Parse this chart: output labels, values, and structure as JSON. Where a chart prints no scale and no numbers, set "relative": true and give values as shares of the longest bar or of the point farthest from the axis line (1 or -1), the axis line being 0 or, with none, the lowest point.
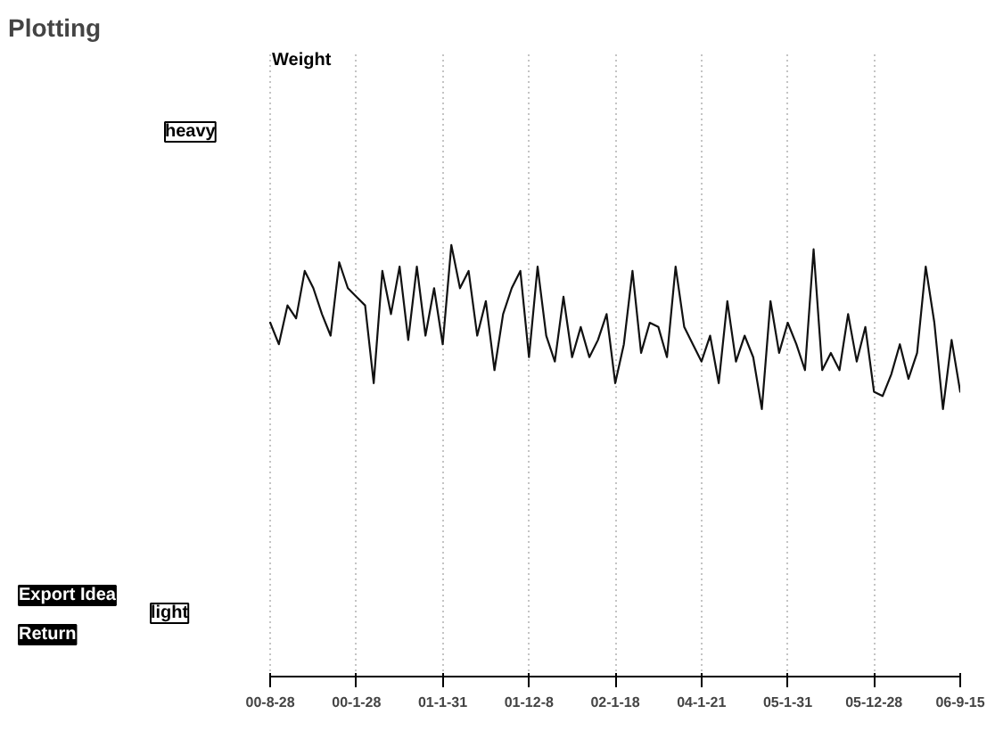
{
  "chart_data": {
    "type": "line",
    "title": "Plotting",
    "relative": true,
    "annotations": [
      "heavy",
      "light",
      "Export Idea",
      "Return",
      "Weight"
    ],
    "categories": [
      "00-8-28",
      null,
      null,
      null,
      null,
      null,
      null,
      null,
      null,
      null,
      "00-1-28",
      null,
      null,
      null,
      null,
      null,
      null,
      null,
      null,
      null,
      "01-1-31",
      null,
      null,
      null,
      null,
      null,
      null,
      null,
      null,
      null,
      "01-12-8",
      null,
      null,
      null,
      null,
      null,
      null,
      null,
      null,
      null,
      "02-1-18",
      null,
      null,
      null,
      null,
      null,
      null,
      null,
      null,
      null,
      "04-1-21",
      null,
      null,
      null,
      null,
      null,
      null,
      null,
      null,
      null,
      "05-1-31",
      null,
      null,
      null,
      null,
      null,
      null,
      null,
      null,
      null,
      "05-12-28",
      null,
      null,
      null,
      null,
      null,
      null,
      null,
      null,
      null,
      "06-9-15"
    ],
    "grid": "x",
    "line_style": "solid",
    "series": [
      {
        "color": "#111111",
        "values": [
          0.82,
          0.77,
          0.86,
          0.83,
          0.94,
          0.9,
          0.84,
          0.79,
          0.96,
          0.9,
          0.88,
          0.86,
          0.68,
          0.94,
          0.84,
          0.95,
          0.78,
          0.95,
          0.79,
          0.9,
          0.77,
          1,
          0.9,
          0.94,
          0.79,
          0.87,
          0.71,
          0.84,
          0.9,
          0.94,
          0.74,
          0.95,
          0.79,
          0.73,
          0.88,
          0.74,
          0.81,
          0.74,
          0.78,
          0.84,
          0.68,
          0.77,
          0.94,
          0.75,
          0.82,
          0.81,
          0.74,
          0.95,
          0.81,
          0.77,
          0.73,
          0.79,
          0.68,
          0.87,
          0.73,
          0.79,
          0.74,
          0.62,
          0.87,
          0.75,
          0.82,
          0.77,
          0.71,
          0.99,
          0.71,
          0.75,
          0.71,
          0.84,
          0.73,
          0.81,
          0.66,
          0.65,
          0.7,
          0.77,
          0.69,
          0.75,
          0.95,
          0.82,
          0.62,
          0.78,
          0.66
        ]
      }
    ]
  }
}
